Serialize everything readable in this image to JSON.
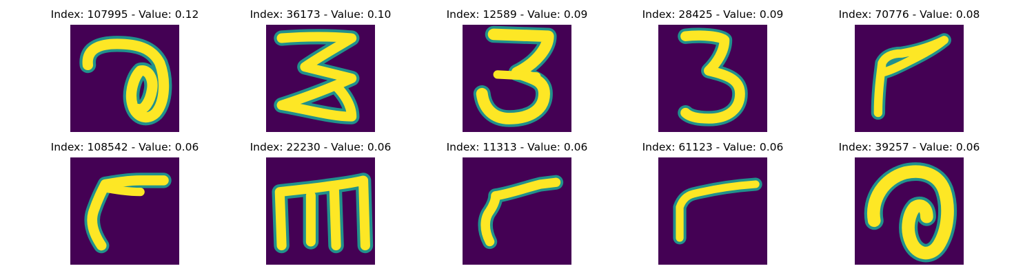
{
  "figure": {
    "panels": [
      {
        "title": "Index: 107995 - Value: 0.12",
        "glyph": "a"
      },
      {
        "title": "Index: 36173 - Value: 0.10",
        "glyph": "3-wide"
      },
      {
        "title": "Index: 12589 - Value: 0.09",
        "glyph": "3-round"
      },
      {
        "title": "Index: 28425 - Value: 0.09",
        "glyph": "3-narrow"
      },
      {
        "title": "Index: 70776 - Value: 0.08",
        "glyph": "r-angled"
      },
      {
        "title": "Index: 108542 - Value: 0.06",
        "glyph": "r-hook"
      },
      {
        "title": "Index: 22230 - Value: 0.06",
        "glyph": "m"
      },
      {
        "title": "Index: 11313 - Value: 0.06",
        "glyph": "r-slant"
      },
      {
        "title": "Index: 61123 - Value: 0.06",
        "glyph": "r-thin"
      },
      {
        "title": "Index: 39257 - Value: 0.06",
        "glyph": "a-bold"
      }
    ],
    "colors": {
      "background": "#440154",
      "edge": "#21918c",
      "stroke": "#fde725"
    }
  }
}
